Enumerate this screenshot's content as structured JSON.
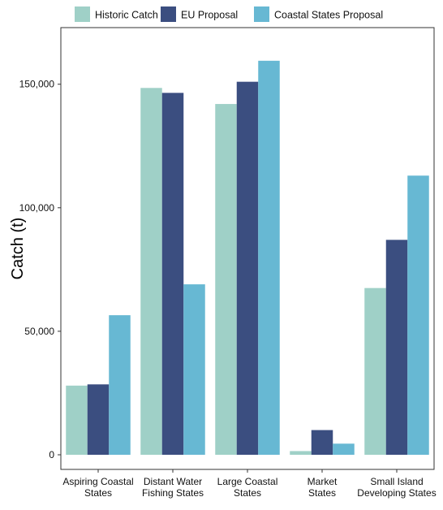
{
  "chart_data": {
    "type": "bar",
    "ylabel": "Catch (t)",
    "xlabel": "",
    "ylim": [
      0,
      167000
    ],
    "y_ticks": [
      0,
      50000,
      100000,
      150000
    ],
    "y_tick_labels": [
      "0",
      "50,000",
      "100,000",
      "150,000"
    ],
    "categories": [
      [
        "Aspiring Coastal",
        "States"
      ],
      [
        "Distant Water",
        "Fishing States"
      ],
      [
        "Large Coastal",
        "States"
      ],
      [
        "Market",
        "States"
      ],
      [
        "Small Island",
        "Developing States"
      ]
    ],
    "series": [
      {
        "name": "Historic Catch",
        "color": "#9fd0c7",
        "values": [
          28000,
          148500,
          142000,
          1500,
          67500
        ]
      },
      {
        "name": "EU Proposal",
        "color": "#3b4e80",
        "values": [
          28500,
          146500,
          151000,
          10000,
          87000
        ]
      },
      {
        "name": "Coastal States Proposal",
        "color": "#67b8d3",
        "values": [
          56500,
          69000,
          159500,
          4500,
          113000
        ]
      }
    ],
    "legend_position": "top",
    "grid": false
  }
}
